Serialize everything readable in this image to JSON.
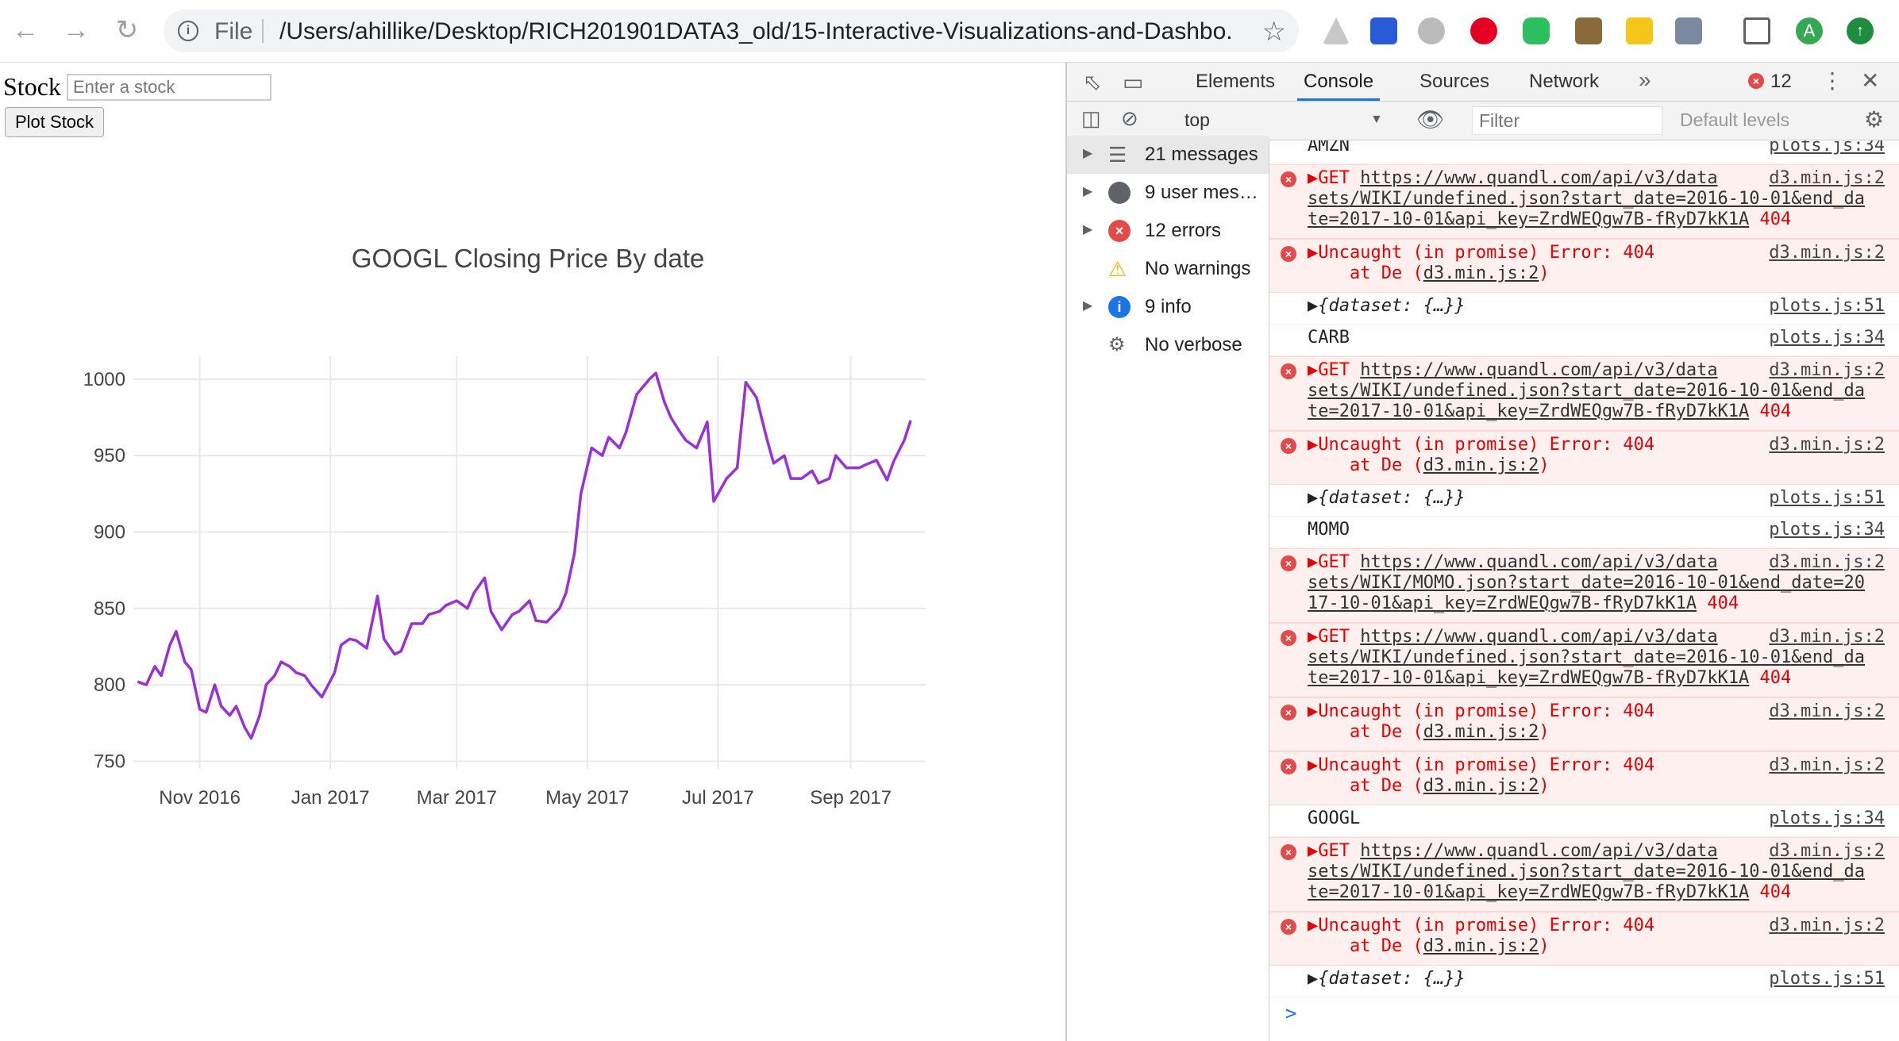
{
  "browser": {
    "scheme": "File",
    "url": "/Users/ahillike/Desktop/RICH201901DATA3_old/15-Interactive-Visualizations-and-Dashbo...",
    "profile_initial": "A"
  },
  "page": {
    "stock_label": "Stock",
    "stock_placeholder": "Enter a stock",
    "plot_button": "Plot Stock"
  },
  "chart_data": {
    "type": "line",
    "title": "GOOGL Closing Price By date",
    "x_tick_labels": [
      "Nov 2016",
      "Jan 2017",
      "Mar 2017",
      "May 2017",
      "Jul 2017",
      "Sep 2017"
    ],
    "y_tick_labels": [
      "750",
      "800",
      "850",
      "900",
      "950",
      "1000"
    ],
    "ylim": [
      745,
      1015
    ],
    "grid": true,
    "color": "#9b30d9",
    "series": [
      {
        "x": [
          "2016-10-03",
          "2016-10-07",
          "2016-10-11",
          "2016-10-14",
          "2016-10-18",
          "2016-10-21",
          "2016-10-25",
          "2016-10-28",
          "2016-11-01",
          "2016-11-04",
          "2016-11-08",
          "2016-11-11",
          "2016-11-15",
          "2016-11-18",
          "2016-11-22",
          "2016-11-25",
          "2016-11-29",
          "2016-12-02",
          "2016-12-06",
          "2016-12-09",
          "2016-12-13",
          "2016-12-16",
          "2016-12-20",
          "2016-12-23",
          "2016-12-28",
          "2017-01-03",
          "2017-01-06",
          "2017-01-10",
          "2017-01-13",
          "2017-01-18",
          "2017-01-23",
          "2017-01-26",
          "2017-01-31",
          "2017-02-03",
          "2017-02-08",
          "2017-02-13",
          "2017-02-16",
          "2017-02-21",
          "2017-02-24",
          "2017-03-01",
          "2017-03-06",
          "2017-03-09",
          "2017-03-14",
          "2017-03-17",
          "2017-03-22",
          "2017-03-27",
          "2017-03-30",
          "2017-04-04",
          "2017-04-07",
          "2017-04-12",
          "2017-04-18",
          "2017-04-21",
          "2017-04-25",
          "2017-04-28",
          "2017-05-03",
          "2017-05-08",
          "2017-05-11",
          "2017-05-16",
          "2017-05-19",
          "2017-05-24",
          "2017-05-30",
          "2017-06-02",
          "2017-06-06",
          "2017-06-09",
          "2017-06-13",
          "2017-06-16",
          "2017-06-21",
          "2017-06-26",
          "2017-06-29",
          "2017-07-05",
          "2017-07-10",
          "2017-07-14",
          "2017-07-19",
          "2017-07-24",
          "2017-07-27",
          "2017-08-01",
          "2017-08-04",
          "2017-08-09",
          "2017-08-14",
          "2017-08-17",
          "2017-08-22",
          "2017-08-25",
          "2017-08-30",
          "2017-09-05",
          "2017-09-08",
          "2017-09-13",
          "2017-09-18",
          "2017-09-21",
          "2017-09-26",
          "2017-09-29"
        ],
        "y": [
          802,
          800,
          812,
          806,
          826,
          835,
          815,
          810,
          784,
          782,
          800,
          786,
          780,
          786,
          772,
          765,
          780,
          800,
          806,
          815,
          812,
          808,
          806,
          800,
          792,
          808,
          826,
          830,
          829,
          824,
          858,
          830,
          820,
          822,
          840,
          840,
          846,
          848,
          852,
          855,
          850,
          860,
          870,
          848,
          836,
          846,
          848,
          855,
          842,
          841,
          850,
          860,
          886,
          925,
          955,
          950,
          962,
          955,
          965,
          990,
          1000,
          1004,
          985,
          975,
          966,
          960,
          955,
          972,
          920,
          935,
          942,
          998,
          988,
          960,
          945,
          950,
          935,
          935,
          940,
          932,
          935,
          950,
          942,
          942,
          944,
          947,
          934,
          946,
          960,
          973
        ]
      }
    ]
  },
  "devtools": {
    "tabs": [
      "Elements",
      "Console",
      "Sources",
      "Network"
    ],
    "active_tab": "Console",
    "error_count": "12",
    "context": "top",
    "filter_placeholder": "Filter",
    "levels": "Default levels",
    "sidebar": [
      {
        "label": "21 messages",
        "icon": "list-icon",
        "expandable": true,
        "selected": true
      },
      {
        "label": "9 user mes…",
        "icon": "user-icon",
        "expandable": true,
        "selected": false
      },
      {
        "label": "12 errors",
        "icon": "error-icon",
        "expandable": true,
        "selected": false
      },
      {
        "label": "No warnings",
        "icon": "warning-icon",
        "expandable": false,
        "selected": false
      },
      {
        "label": "9 info",
        "icon": "info-icon",
        "expandable": true,
        "selected": false
      },
      {
        "label": "No verbose",
        "icon": "bug-icon",
        "expandable": false,
        "selected": false
      }
    ],
    "messages": [
      {
        "kind": "log",
        "lines": [
          "AMZN"
        ],
        "src": "plots.js:34"
      },
      {
        "kind": "err",
        "lines": [
          "▶GET https://www.quandl.com/api/v3/data",
          "sets/WIKI/undefined.json?start_date=2016-10-01&end_da",
          "te=2017-10-01&api_key=ZrdWEQgw7B-fRyD7kK1A 404"
        ],
        "src": "d3.min.js:2"
      },
      {
        "kind": "err",
        "lines": [
          "▶Uncaught (in promise) Error: 404",
          "    at De (d3.min.js:2)"
        ],
        "src": "d3.min.js:2"
      },
      {
        "kind": "log",
        "lines": [
          "▶{dataset: {…}}"
        ],
        "src": "plots.js:51"
      },
      {
        "kind": "log",
        "lines": [
          "CARB"
        ],
        "src": "plots.js:34"
      },
      {
        "kind": "err",
        "lines": [
          "▶GET https://www.quandl.com/api/v3/data",
          "sets/WIKI/undefined.json?start_date=2016-10-01&end_da",
          "te=2017-10-01&api_key=ZrdWEQgw7B-fRyD7kK1A 404"
        ],
        "src": "d3.min.js:2"
      },
      {
        "kind": "err",
        "lines": [
          "▶Uncaught (in promise) Error: 404",
          "    at De (d3.min.js:2)"
        ],
        "src": "d3.min.js:2"
      },
      {
        "kind": "log",
        "lines": [
          "▶{dataset: {…}}"
        ],
        "src": "plots.js:51"
      },
      {
        "kind": "log",
        "lines": [
          "MOMO"
        ],
        "src": "plots.js:34"
      },
      {
        "kind": "err",
        "lines": [
          "▶GET https://www.quandl.com/api/v3/data",
          "sets/WIKI/MOMO.json?start_date=2016-10-01&end_date=20",
          "17-10-01&api_key=ZrdWEQgw7B-fRyD7kK1A 404"
        ],
        "src": "d3.min.js:2"
      },
      {
        "kind": "err",
        "lines": [
          "▶GET https://www.quandl.com/api/v3/data",
          "sets/WIKI/undefined.json?start_date=2016-10-01&end_da",
          "te=2017-10-01&api_key=ZrdWEQgw7B-fRyD7kK1A 404"
        ],
        "src": "d3.min.js:2"
      },
      {
        "kind": "err",
        "lines": [
          "▶Uncaught (in promise) Error: 404",
          "    at De (d3.min.js:2)"
        ],
        "src": "d3.min.js:2"
      },
      {
        "kind": "err",
        "lines": [
          "▶Uncaught (in promise) Error: 404",
          "    at De (d3.min.js:2)"
        ],
        "src": "d3.min.js:2"
      },
      {
        "kind": "log",
        "lines": [
          "GOOGL"
        ],
        "src": "plots.js:34"
      },
      {
        "kind": "err",
        "lines": [
          "▶GET https://www.quandl.com/api/v3/data",
          "sets/WIKI/undefined.json?start_date=2016-10-01&end_da",
          "te=2017-10-01&api_key=ZrdWEQgw7B-fRyD7kK1A 404"
        ],
        "src": "d3.min.js:2"
      },
      {
        "kind": "err",
        "lines": [
          "▶Uncaught (in promise) Error: 404",
          "    at De (d3.min.js:2)"
        ],
        "src": "d3.min.js:2"
      },
      {
        "kind": "log",
        "lines": [
          "▶{dataset: {…}}"
        ],
        "src": "plots.js:51"
      }
    ],
    "prompt": ">"
  }
}
